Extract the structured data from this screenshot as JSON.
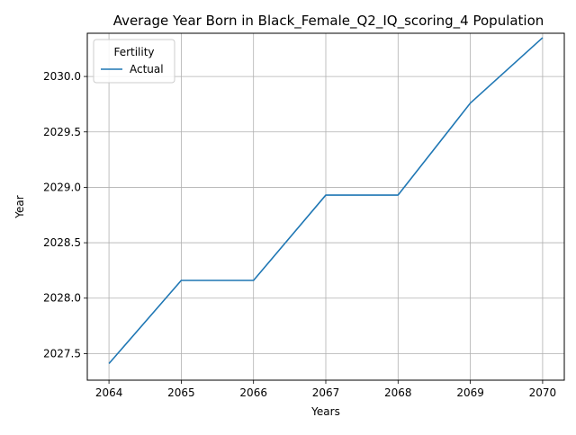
{
  "chart_data": {
    "type": "line",
    "title": "Average Year Born in Black_Female_Q2_IQ_scoring_4 Population",
    "xlabel": "Years",
    "ylabel": "Year",
    "x": [
      2064,
      2065,
      2066,
      2067,
      2068,
      2069,
      2070
    ],
    "xlim": [
      2063.7,
      2070.3
    ],
    "ylim": [
      2027.26,
      2030.39
    ],
    "xticks": [
      "2064",
      "2065",
      "2066",
      "2067",
      "2068",
      "2069",
      "2070"
    ],
    "yticks": [
      "2027.5",
      "2028.0",
      "2028.5",
      "2029.0",
      "2029.5",
      "2030.0"
    ],
    "grid": true,
    "legend": {
      "title": "Fertility",
      "placement": "top-left"
    },
    "series": [
      {
        "name": "Actual",
        "color": "#1f77b4",
        "values": [
          2027.41,
          2028.16,
          2028.16,
          2028.93,
          2028.93,
          2029.76,
          2030.35
        ]
      }
    ]
  }
}
